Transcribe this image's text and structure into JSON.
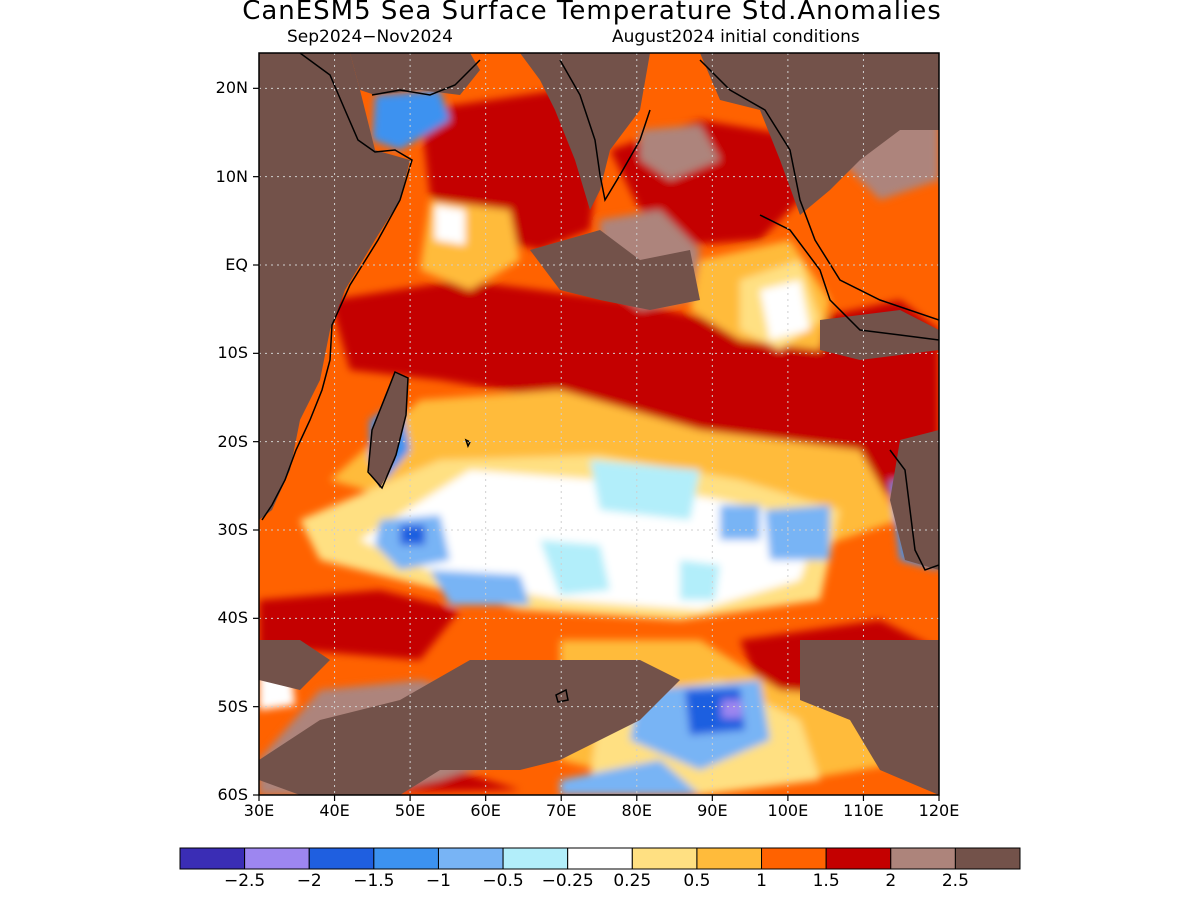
{
  "title": "CanESM5 Sea Surface Temperature Std.Anomalies",
  "subtitle_left": "Sep2024−Nov2024",
  "subtitle_right": "August2024 initial conditions",
  "map": {
    "region": "Indian Ocean",
    "lon_range": [
      30,
      120
    ],
    "lat_range": [
      -60,
      24
    ],
    "lat_ticks": [
      {
        "value": 20,
        "label": "20N"
      },
      {
        "value": 10,
        "label": "10N"
      },
      {
        "value": 0,
        "label": "EQ"
      },
      {
        "value": -10,
        "label": "10S"
      },
      {
        "value": -20,
        "label": "20S"
      },
      {
        "value": -30,
        "label": "30S"
      },
      {
        "value": -40,
        "label": "40S"
      },
      {
        "value": -50,
        "label": "50S"
      },
      {
        "value": -60,
        "label": "60S"
      }
    ],
    "lon_ticks": [
      {
        "value": 30,
        "label": "30E"
      },
      {
        "value": 40,
        "label": "40E"
      },
      {
        "value": 50,
        "label": "50E"
      },
      {
        "value": 60,
        "label": "60E"
      },
      {
        "value": 70,
        "label": "70E"
      },
      {
        "value": 80,
        "label": "80E"
      },
      {
        "value": 90,
        "label": "90E"
      },
      {
        "value": 100,
        "label": "100E"
      },
      {
        "value": 110,
        "label": "110E"
      },
      {
        "value": 120,
        "label": "120E"
      }
    ],
    "land_color": "#73524a",
    "gridlines": true
  },
  "colorbar": {
    "colors": [
      "#3a2db5",
      "#9d86f0",
      "#1f5fe0",
      "#3c92f0",
      "#78b4f5",
      "#b2eefa",
      "#ffffff",
      "#ffe082",
      "#ffbb3b",
      "#ff6200",
      "#c40000",
      "#ad847b",
      "#73524a"
    ],
    "labels": [
      "−2.5",
      "−2",
      "−1.5",
      "−1",
      "−0.5",
      "−0.25",
      "0.25",
      "0.5",
      "1",
      "1.5",
      "2",
      "2.5"
    ]
  }
}
